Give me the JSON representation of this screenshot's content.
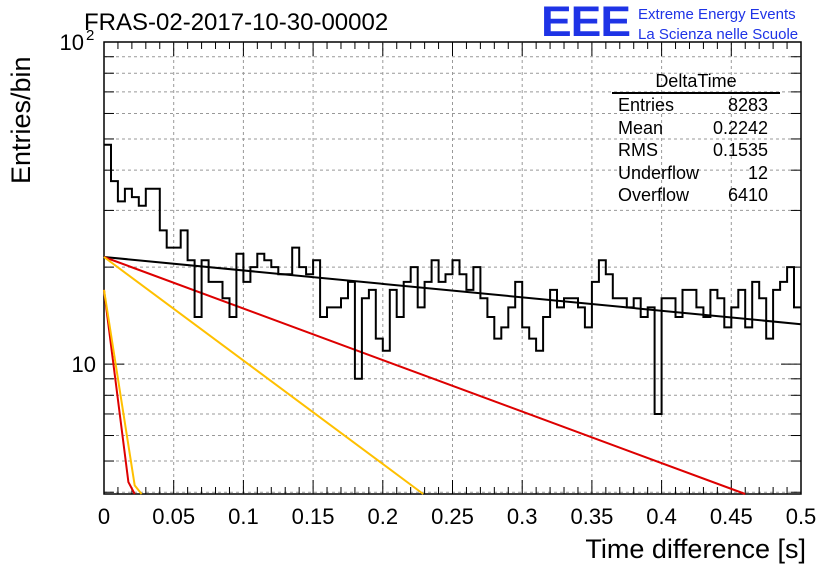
{
  "title": "FRAS-02-2017-10-30-00002",
  "logo": {
    "mark": "EEE",
    "line1": "Extreme Energy Events",
    "line2": "La Scienza nelle Scuole",
    "color": "#1e33e6"
  },
  "stats": {
    "title": "DeltaTime",
    "rows": [
      {
        "label": "Entries",
        "value": "8283"
      },
      {
        "label": "Mean",
        "value": "0.2242"
      },
      {
        "label": "RMS",
        "value": "0.1535"
      },
      {
        "label": "Underflow",
        "value": "12"
      },
      {
        "label": "Overflow",
        "value": "6410"
      }
    ]
  },
  "chart_data": {
    "type": "line",
    "title": "FRAS-02-2017-10-30-00002",
    "xlabel": "Time difference [s]",
    "ylabel": "Entries/bin",
    "xlim": [
      0,
      0.5
    ],
    "ylim": [
      3.95,
      100
    ],
    "yscale": "log",
    "grid": true,
    "x_ticks": [
      "0",
      "0.05",
      "0.1",
      "0.15",
      "0.2",
      "0.25",
      "0.3",
      "0.35",
      "0.4",
      "0.45",
      "0.5"
    ],
    "y_ticks": [
      {
        "value": 10,
        "label": "10"
      },
      {
        "value": 100,
        "label": "10",
        "sup": "2"
      }
    ],
    "histogram": {
      "name": "DeltaTime",
      "bin_width": 0.005,
      "color": "#000000",
      "values": [
        48,
        37,
        32,
        35,
        33,
        31,
        35,
        35,
        26,
        23,
        23,
        26,
        21,
        14,
        21,
        18,
        18,
        16,
        14,
        22,
        18,
        20,
        22,
        21,
        20,
        19,
        19,
        23,
        20,
        19,
        21,
        14,
        15,
        15,
        16,
        18,
        9,
        16,
        17,
        12,
        11,
        17,
        14,
        18,
        20,
        15,
        18,
        21,
        18,
        19,
        21,
        19,
        17,
        20,
        16,
        14,
        12,
        13,
        15,
        18,
        13,
        12,
        11,
        14,
        17,
        15,
        16,
        16,
        15,
        13,
        18,
        21,
        19,
        16,
        16,
        15,
        16,
        14,
        15,
        7,
        16,
        16,
        14,
        17,
        17,
        15,
        14,
        17,
        16,
        13,
        15,
        17,
        13,
        18,
        16,
        12,
        17,
        18,
        20,
        15
      ]
    },
    "fits": [
      {
        "color": "#000000",
        "x": [
          0,
          0.5
        ],
        "y": [
          21.5,
          13.3
        ]
      },
      {
        "color": "#dd0000",
        "x": [
          0,
          0.46
        ],
        "y": [
          21.5,
          3.95
        ]
      },
      {
        "color": "#ffc000",
        "x": [
          0,
          0.229
        ],
        "y": [
          21.5,
          3.95
        ]
      },
      {
        "color": "#dd0000",
        "x": [
          0,
          0.0175,
          0.022
        ],
        "y": [
          17.0,
          4.3,
          3.95
        ]
      },
      {
        "color": "#ffc000",
        "x": [
          0,
          0.022,
          0.027
        ],
        "y": [
          17.0,
          4.2,
          3.95
        ]
      }
    ]
  }
}
